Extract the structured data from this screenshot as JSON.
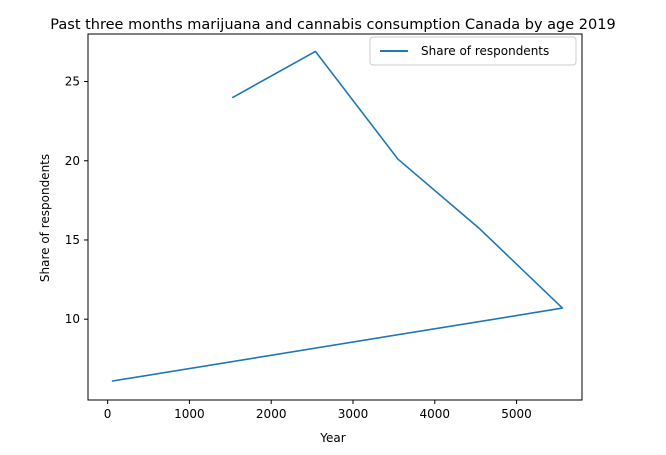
{
  "chart_data": {
    "type": "line",
    "title": "Past three months marijuana and cannabis consumption Canada by age 2019",
    "xlabel": "Year",
    "ylabel": "Share of respondents",
    "xlim": [
      -240,
      5800
    ],
    "ylim": [
      4.9,
      28.0
    ],
    "xticks": [
      0,
      1000,
      2000,
      3000,
      4000,
      5000
    ],
    "yticks": [
      10,
      15,
      20,
      25
    ],
    "grid": false,
    "legend_position": "top-right",
    "series": [
      {
        "name": "Share of respondents",
        "color": "#1f77b4",
        "x": [
          1530,
          2540,
          3550,
          4550,
          5560,
          60
        ],
        "y": [
          24.0,
          26.9,
          20.1,
          15.7,
          10.7,
          6.1
        ]
      }
    ]
  }
}
